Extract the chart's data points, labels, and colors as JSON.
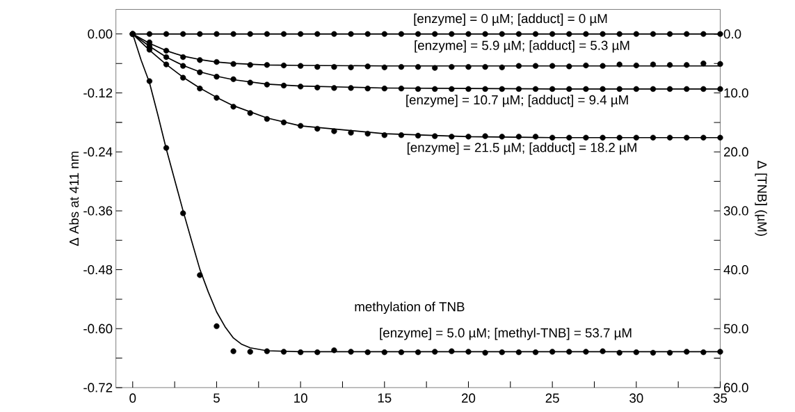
{
  "chart_data": {
    "type": "scatter",
    "ylabel": "Δ Abs at 411 nm",
    "y2label": "Δ [TNB] (µM)",
    "x": [
      0,
      1,
      2,
      3,
      4,
      5,
      6,
      7,
      8,
      9,
      10,
      11,
      12,
      13,
      14,
      15,
      16,
      17,
      18,
      19,
      20,
      21,
      22,
      23,
      24,
      25,
      26,
      27,
      28,
      29,
      30,
      31,
      32,
      33,
      34,
      35
    ],
    "series": [
      {
        "marker": "circle",
        "color": "#000000",
        "values": [
          0,
          0,
          0,
          0,
          0,
          0,
          0,
          0,
          0,
          0,
          0,
          0,
          0,
          0,
          0,
          0,
          0,
          0,
          0,
          0,
          0,
          0,
          0,
          0,
          0,
          0,
          0,
          0,
          0,
          0,
          0,
          0,
          0,
          0,
          0,
          0
        ]
      },
      {
        "marker": "circle",
        "color": "#000000",
        "values": [
          0,
          -0.017,
          -0.034,
          -0.047,
          -0.053,
          -0.057,
          -0.061,
          -0.063,
          -0.063,
          -0.064,
          -0.065,
          -0.067,
          -0.067,
          -0.068,
          -0.066,
          -0.068,
          -0.067,
          -0.067,
          -0.069,
          -0.067,
          -0.067,
          -0.067,
          -0.068,
          -0.065,
          -0.065,
          -0.065,
          -0.066,
          -0.064,
          -0.065,
          -0.062,
          -0.064,
          -0.062,
          -0.063,
          -0.063,
          -0.06,
          -0.061
        ]
      },
      {
        "marker": "circle",
        "color": "#000000",
        "values": [
          0,
          -0.025,
          -0.047,
          -0.065,
          -0.078,
          -0.087,
          -0.092,
          -0.099,
          -0.103,
          -0.105,
          -0.107,
          -0.109,
          -0.11,
          -0.11,
          -0.111,
          -0.111,
          -0.111,
          -0.112,
          -0.112,
          -0.112,
          -0.112,
          -0.112,
          -0.112,
          -0.112,
          -0.112,
          -0.112,
          -0.112,
          -0.112,
          -0.112,
          -0.112,
          -0.112,
          -0.112,
          -0.112,
          -0.112,
          -0.112,
          -0.112
        ]
      },
      {
        "marker": "circle",
        "color": "#000000",
        "values": [
          0,
          -0.032,
          -0.062,
          -0.089,
          -0.111,
          -0.13,
          -0.148,
          -0.161,
          -0.173,
          -0.18,
          -0.187,
          -0.193,
          -0.198,
          -0.201,
          -0.203,
          -0.206,
          -0.206,
          -0.207,
          -0.208,
          -0.209,
          -0.209,
          -0.208,
          -0.209,
          -0.209,
          -0.209,
          -0.211,
          -0.211,
          -0.211,
          -0.211,
          -0.211,
          -0.211,
          -0.211,
          -0.211,
          -0.211,
          -0.211,
          -0.211
        ]
      },
      {
        "marker": "circle",
        "color": "#000000",
        "values": [
          0,
          -0.096,
          -0.232,
          -0.365,
          -0.491,
          -0.595,
          -0.646,
          -0.647,
          -0.646,
          -0.647,
          -0.648,
          -0.648,
          -0.644,
          -0.647,
          -0.648,
          -0.648,
          -0.648,
          -0.648,
          -0.647,
          -0.646,
          -0.647,
          -0.649,
          -0.648,
          -0.648,
          -0.648,
          -0.647,
          -0.647,
          -0.647,
          -0.646,
          -0.649,
          -0.648,
          -0.649,
          -0.649,
          -0.647,
          -0.648,
          -0.647
        ]
      },
      {
        "type": "line",
        "marker": "none",
        "color": "#000000",
        "x": [
          0,
          35
        ],
        "values": [
          0,
          0
        ]
      },
      {
        "type": "line",
        "marker": "none",
        "color": "#000000",
        "x": [
          0,
          1,
          2,
          3,
          4,
          5,
          6,
          8,
          10,
          15,
          20,
          25,
          30,
          35
        ],
        "values": [
          0,
          -0.019,
          -0.034,
          -0.045,
          -0.052,
          -0.057,
          -0.06,
          -0.063,
          -0.064,
          -0.065,
          -0.065,
          -0.065,
          -0.065,
          -0.065
        ]
      },
      {
        "type": "line",
        "marker": "none",
        "color": "#000000",
        "x": [
          0,
          1,
          2,
          3,
          4,
          5,
          6,
          8,
          10,
          15,
          20,
          25,
          30,
          35
        ],
        "values": [
          0,
          -0.025,
          -0.047,
          -0.064,
          -0.077,
          -0.086,
          -0.093,
          -0.102,
          -0.106,
          -0.11,
          -0.111,
          -0.112,
          -0.112,
          -0.112
        ]
      },
      {
        "type": "line",
        "marker": "none",
        "color": "#000000",
        "x": [
          0,
          1,
          2,
          3,
          4,
          5,
          6,
          8,
          10,
          15,
          20,
          25,
          30,
          35
        ],
        "values": [
          0,
          -0.033,
          -0.062,
          -0.088,
          -0.11,
          -0.129,
          -0.146,
          -0.171,
          -0.187,
          -0.203,
          -0.209,
          -0.211,
          -0.211,
          -0.211
        ]
      },
      {
        "type": "line",
        "marker": "none",
        "color": "#000000",
        "x": [
          0,
          0.5,
          1,
          1.5,
          2,
          2.5,
          3,
          3.5,
          4,
          4.5,
          5,
          5.5,
          6,
          6.5,
          7,
          8,
          10,
          15,
          20,
          25,
          30,
          35
        ],
        "values": [
          0,
          -0.053,
          -0.099,
          -0.165,
          -0.234,
          -0.297,
          -0.36,
          -0.42,
          -0.479,
          -0.525,
          -0.566,
          -0.596,
          -0.619,
          -0.632,
          -0.639,
          -0.645,
          -0.647,
          -0.647,
          -0.647,
          -0.647,
          -0.647,
          -0.647
        ]
      }
    ],
    "annotations": [
      "[enzyme] = 0 µM; [adduct] = 0 µM",
      "[enzyme] = 5.9 µM; [adduct] = 5.3 µM",
      "[enzyme] = 10.7 µM; [adduct] = 9.4 µM",
      "[enzyme] = 21.5 µM; [adduct] = 18.2 µM",
      "methylation of TNB",
      "[enzyme] = 5.0 µM; [methyl-TNB] = 53.7 µM"
    ],
    "xlim": [
      -1,
      35
    ],
    "xticks": [
      0,
      {
        "value": 2.5,
        "label": null
      },
      5,
      {
        "value": 7.5,
        "label": null
      },
      10,
      {
        "value": 12.5,
        "label": null
      },
      15,
      {
        "value": 17.5,
        "label": null
      },
      20,
      {
        "value": 22.5,
        "label": null
      },
      25,
      {
        "value": 27.5,
        "label": null
      },
      30,
      {
        "value": 32.5,
        "label": null
      },
      35
    ],
    "ylim": [
      -0.72,
      0.05
    ],
    "yticks": [
      {
        "value": 0,
        "label": "0.00"
      },
      {
        "value": -0.06,
        "label": null
      },
      {
        "value": -0.12,
        "label": "-0.12"
      },
      {
        "value": -0.18,
        "label": null
      },
      {
        "value": -0.24,
        "label": "-0.24"
      },
      {
        "value": -0.3,
        "label": null
      },
      {
        "value": -0.36,
        "label": "-0.36"
      },
      {
        "value": -0.42,
        "label": null
      },
      {
        "value": -0.48,
        "label": "-0.48"
      },
      {
        "value": -0.54,
        "label": null
      },
      {
        "value": -0.6,
        "label": "-0.60"
      },
      {
        "value": -0.66,
        "label": null
      },
      {
        "value": -0.72,
        "label": "-0.72"
      }
    ],
    "y2lim": [
      60,
      -4.17
    ],
    "y2ticks": [
      {
        "value": 0,
        "label": "0.0"
      },
      {
        "value": 5,
        "label": null
      },
      {
        "value": 10,
        "label": "10.0"
      },
      {
        "value": 15,
        "label": null
      },
      {
        "value": 20,
        "label": "20.0"
      },
      {
        "value": 25,
        "label": null
      },
      {
        "value": 30,
        "label": "30.0"
      },
      {
        "value": 35,
        "label": null
      },
      {
        "value": 40,
        "label": "40.0"
      },
      {
        "value": 45,
        "label": null
      },
      {
        "value": 50,
        "label": "50.0"
      },
      {
        "value": 55,
        "label": null
      },
      {
        "value": 60,
        "label": "60.0"
      }
    ]
  }
}
